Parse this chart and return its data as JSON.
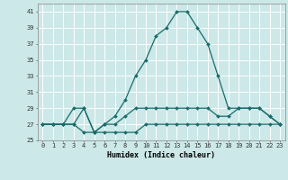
{
  "xlabel": "Humidex (Indice chaleur)",
  "background_color": "#cce8e8",
  "grid_color": "#ffffff",
  "line_color": "#1a6b6b",
  "xlim": [
    -0.5,
    23.5
  ],
  "ylim": [
    25,
    42
  ],
  "yticks": [
    25,
    27,
    29,
    31,
    33,
    35,
    37,
    39,
    41
  ],
  "xticks": [
    0,
    1,
    2,
    3,
    4,
    5,
    6,
    7,
    8,
    9,
    10,
    11,
    12,
    13,
    14,
    15,
    16,
    17,
    18,
    19,
    20,
    21,
    22,
    23
  ],
  "series1": [
    27,
    27,
    27,
    27,
    29,
    26,
    27,
    28,
    30,
    33,
    35,
    38,
    39,
    41,
    41,
    39,
    37,
    33,
    29,
    29,
    29,
    29,
    28,
    27
  ],
  "series2": [
    27,
    27,
    27,
    29,
    29,
    26,
    27,
    27,
    28,
    29,
    29,
    29,
    29,
    29,
    29,
    29,
    29,
    28,
    28,
    29,
    29,
    29,
    28,
    27
  ],
  "series3": [
    27,
    27,
    27,
    27,
    26,
    26,
    26,
    26,
    26,
    26,
    27,
    27,
    27,
    27,
    27,
    27,
    27,
    27,
    27,
    27,
    27,
    27,
    27,
    27
  ]
}
